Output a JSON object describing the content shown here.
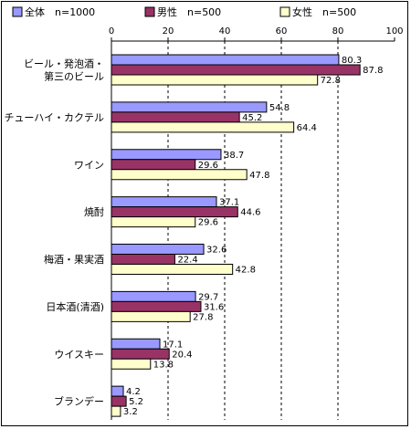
{
  "chart_data": {
    "type": "bar",
    "orientation": "horizontal",
    "title": "",
    "xlabel": "",
    "ylabel": "",
    "xlim": [
      0,
      100
    ],
    "x_ticks": [
      "0",
      "20",
      "40",
      "60",
      "80",
      "100"
    ],
    "grid": "vertical-dashed",
    "legend_position": "top",
    "categories": [
      [
        "ビール・発泡酒・",
        "第三のビール"
      ],
      [
        "チューハイ・カクテル"
      ],
      [
        "ワイン"
      ],
      [
        "焼酎"
      ],
      [
        "梅酒・果実酒"
      ],
      [
        "日本酒(清酒)"
      ],
      [
        "ウイスキー"
      ],
      [
        "ブランデー"
      ]
    ],
    "series": [
      {
        "name": "全体　n=1000",
        "color": "#9999ff",
        "values": [
          80.3,
          54.8,
          38.7,
          37.1,
          32.6,
          29.7,
          17.1,
          4.2
        ],
        "labels": [
          "80.3",
          "54.8",
          "38.7",
          "37.1",
          "32.6",
          "29.7",
          "17.1",
          "4.2"
        ]
      },
      {
        "name": "男性　n=500",
        "color": "#993366",
        "values": [
          87.8,
          45.2,
          29.6,
          44.6,
          22.4,
          31.6,
          20.4,
          5.2
        ],
        "labels": [
          "87.8",
          "45.2",
          "29.6",
          "44.6",
          "22.4",
          "31.6",
          "20.4",
          "5.2"
        ]
      },
      {
        "name": "女性　n=500",
        "color": "#ffffcc",
        "values": [
          72.8,
          64.4,
          47.8,
          29.6,
          42.8,
          27.8,
          13.8,
          3.2
        ],
        "labels": [
          "72.8",
          "64.4",
          "47.8",
          "29.6",
          "42.8",
          "27.8",
          "13.8",
          "3.2"
        ]
      }
    ]
  }
}
